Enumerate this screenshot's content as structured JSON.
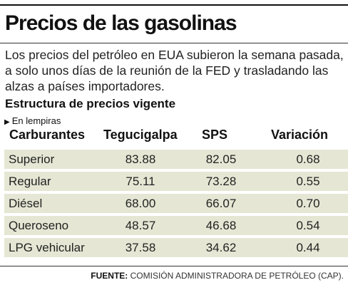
{
  "title": "Precios de las gasolinas",
  "intro": "Los precios del petróleo en EUA subieron la semana pasada, a solo unos días de la reunión de la FED y trasladando las alzas a países importadores.",
  "subhead": "Estructura de precios vigente",
  "unit_note": "En lempiras",
  "source_label": "FUENTE:",
  "source_text": "COMISIÓN ADMINISTRADORA DE PETRÓLEO (CAP).",
  "colors": {
    "row_bg": "#e5e7d4",
    "rule": "#111111"
  },
  "chart_data": {
    "type": "table",
    "columns": [
      "Carburantes",
      "Tegucigalpa",
      "SPS",
      "Variación"
    ],
    "rows": [
      {
        "name": "Superior",
        "values": [
          "83.88",
          "82.05",
          "0.68"
        ]
      },
      {
        "name": "Regular",
        "values": [
          "75.11",
          "73.28",
          "0.55"
        ]
      },
      {
        "name": "Diésel",
        "values": [
          "68.00",
          "66.07",
          "0.70"
        ]
      },
      {
        "name": "Queroseno",
        "values": [
          "48.57",
          "46.68",
          "0.54"
        ]
      },
      {
        "name": "LPG vehicular",
        "values": [
          "37.58",
          "34.62",
          "0.44"
        ]
      }
    ]
  }
}
